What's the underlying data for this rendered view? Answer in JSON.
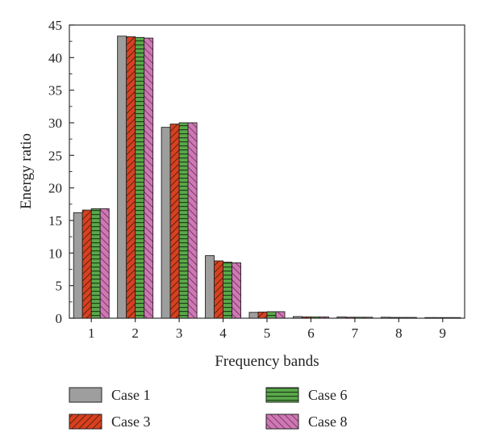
{
  "chart_data": {
    "type": "bar",
    "xlabel": "Frequency bands",
    "ylabel": "Energy ratio",
    "ylim": [
      0,
      45
    ],
    "yticks": [
      0,
      5,
      10,
      15,
      20,
      25,
      30,
      35,
      40,
      45
    ],
    "categories": [
      "1",
      "2",
      "3",
      "4",
      "5",
      "6",
      "7",
      "8",
      "9"
    ],
    "grid": false,
    "legend_placement": "bottom",
    "series": [
      {
        "name": "Case 1",
        "pattern": "solid",
        "color": "#9e9e9e",
        "values": [
          16.2,
          43.3,
          29.3,
          9.6,
          0.9,
          0.25,
          0.2,
          0.15,
          0.1
        ]
      },
      {
        "name": "Case 3",
        "pattern": "diagonal-hatch",
        "color": "#d9401f",
        "values": [
          16.6,
          43.2,
          29.8,
          8.8,
          0.95,
          0.2,
          0.15,
          0.12,
          0.08
        ]
      },
      {
        "name": "Case 6",
        "pattern": "horizontal-lines",
        "color": "#5aa94a",
        "values": [
          16.8,
          43.1,
          30.0,
          8.6,
          1.0,
          0.2,
          0.15,
          0.12,
          0.08
        ]
      },
      {
        "name": "Case 8",
        "pattern": "diagonal-hatch-reverse",
        "color": "#d077b5",
        "values": [
          16.8,
          43.0,
          30.0,
          8.5,
          1.0,
          0.2,
          0.15,
          0.12,
          0.08
        ]
      }
    ]
  }
}
